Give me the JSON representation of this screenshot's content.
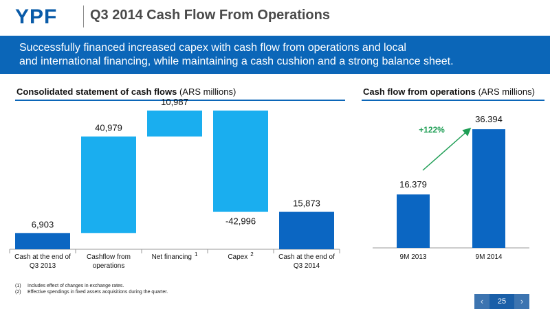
{
  "header": {
    "logo": "YPF",
    "title": "Q3 2014 Cash Flow From Operations"
  },
  "banner": {
    "line1": "Successfully financed increased capex with cash flow from operations and local",
    "line2": "and international financing, while maintaining a cash cushion and a strong balance sheet."
  },
  "left_section": {
    "title_bold": "Consolidated statement of cash flows",
    "title_unit": "(ARS millions)"
  },
  "right_section": {
    "title_bold": "Cash flow from operations",
    "title_unit": "(ARS millions)"
  },
  "footnotes": [
    {
      "num": "(1)",
      "text": "Includes effect of changes in exchange rates."
    },
    {
      "num": "(2)",
      "text": "Effective spendings in fixed assets acquisitions during the quarter."
    }
  ],
  "pager": {
    "page": "25",
    "prev": "‹",
    "next": "›"
  },
  "colors": {
    "brand": "#0b66b8",
    "dark_bar": "#0b66c2",
    "light_bar": "#1aaeef",
    "arrow": "#1f9e55"
  },
  "chart_data": [
    {
      "type": "bar",
      "subtype": "waterfall",
      "categories": [
        {
          "line1": "Cash at the end of",
          "line2": "Q3 2013",
          "sup": ""
        },
        {
          "line1": "Cashflow from",
          "line2": "operations",
          "sup": ""
        },
        {
          "line1": "Net financing",
          "line2": "",
          "sup": "1"
        },
        {
          "line1": "Capex",
          "line2": "",
          "sup": "2"
        },
        {
          "line1": "Cash at the end of",
          "line2": "Q3 2014",
          "sup": ""
        }
      ],
      "steps": [
        {
          "value": 6903,
          "label": "6,903",
          "kind": "total"
        },
        {
          "value": 40979,
          "label": "40,979",
          "kind": "delta"
        },
        {
          "value": 10987,
          "label": "10,987",
          "kind": "delta"
        },
        {
          "value": -42996,
          "label": "-42,996",
          "kind": "delta"
        },
        {
          "value": 15873,
          "label": "15,873",
          "kind": "total"
        }
      ],
      "ylim": [
        0,
        65000
      ]
    },
    {
      "type": "bar",
      "categories": [
        "9M 2013",
        "9M 2014"
      ],
      "values": [
        16.379,
        36.394
      ],
      "labels": [
        "16.379",
        "36.394"
      ],
      "ylim": [
        0,
        40
      ],
      "annotation": "+122%"
    }
  ]
}
